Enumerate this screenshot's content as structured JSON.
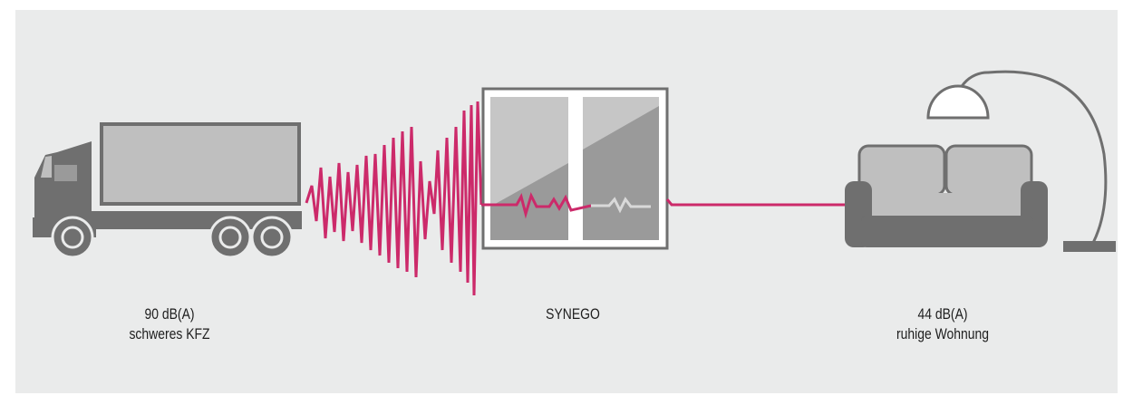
{
  "colors": {
    "panel": "#eaebeb",
    "dark_gray": "#6f6f6f",
    "light_gray": "#bfbfbf",
    "accent": "#cc2a6a"
  },
  "icons": [
    "truck-icon",
    "window-icon",
    "sofa-icon",
    "floor-lamp-icon"
  ],
  "truck": {
    "level": "90 dB(A)",
    "caption": "schweres KFZ"
  },
  "window": {
    "label": "SYNEGO"
  },
  "room": {
    "level": "44 dB(A)",
    "caption": "ruhige Wohnung"
  }
}
